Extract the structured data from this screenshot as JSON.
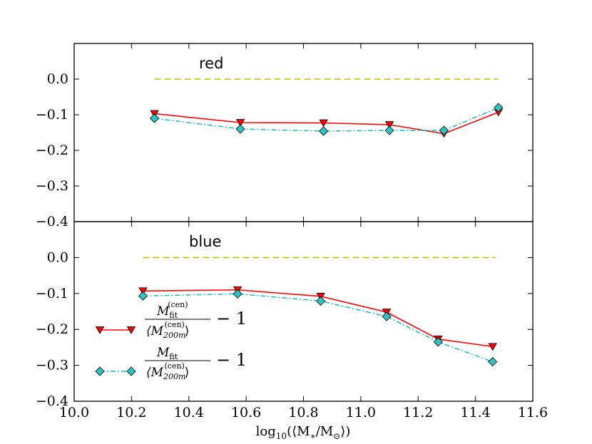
{
  "chart_data": {
    "type": "line",
    "xlabel": "log₁₀(⟨M∗/M⊙⟩)",
    "xlabel_parts": {
      "func": "log",
      "sub": "10",
      "body": "(⟨M",
      "star": "∗",
      "slash": "/M",
      "sun": "⊙",
      "close": "⟩)"
    },
    "xlim": [
      10.0,
      11.6
    ],
    "xticks": [
      "10.0",
      "10.2",
      "10.4",
      "10.6",
      "10.8",
      "11.0",
      "11.2",
      "11.4",
      "11.6"
    ],
    "colors": {
      "red_series": "#ff0000",
      "cyan_series": "#00bfbf",
      "baseline": "#bfbf00",
      "marker_red": "#ff0000",
      "marker_cyan": "#2ec4c4"
    },
    "panels": [
      {
        "label": "red",
        "ylim": [
          -0.4,
          0.1
        ],
        "yticks": [
          "0.0",
          "−0.1",
          "−0.2",
          "−0.3",
          "−0.4"
        ],
        "baseline": {
          "y": 0.0,
          "x": [
            10.28,
            11.48
          ]
        },
        "series": [
          {
            "name": "fit / cen - 1",
            "marker": "triangle-down",
            "x": [
              10.28,
              10.58,
              10.87,
              11.1,
              11.29,
              11.48
            ],
            "y": [
              -0.097,
              -0.122,
              -0.123,
              -0.128,
              -0.153,
              -0.093
            ]
          },
          {
            "name": "fit / 200m - 1",
            "marker": "diamond",
            "x": [
              10.28,
              10.58,
              10.87,
              11.1,
              11.29,
              11.48
            ],
            "y": [
              -0.11,
              -0.14,
              -0.146,
              -0.144,
              -0.144,
              -0.08
            ]
          }
        ]
      },
      {
        "label": "blue",
        "ylim": [
          -0.4,
          0.1
        ],
        "yticks": [
          "0.0",
          "−0.1",
          "−0.2",
          "−0.3",
          "−0.4"
        ],
        "baseline": {
          "y": 0.0,
          "x": [
            10.24,
            11.47
          ]
        },
        "series": [
          {
            "name": "fit / cen - 1",
            "marker": "triangle-down",
            "x": [
              10.24,
              10.57,
              10.86,
              11.09,
              11.27,
              11.46
            ],
            "y": [
              -0.093,
              -0.09,
              -0.108,
              -0.152,
              -0.227,
              -0.248
            ]
          },
          {
            "name": "fit / 200m - 1",
            "marker": "diamond",
            "x": [
              10.24,
              10.57,
              10.86,
              11.09,
              11.27,
              11.46
            ],
            "y": [
              -0.107,
              -0.101,
              -0.121,
              -0.164,
              -0.235,
              -0.29
            ]
          }
        ]
      }
    ],
    "legend": {
      "placement": "lower-left of bottom panel",
      "entries": [
        {
          "marker": "triangle-down",
          "numerator": "M",
          "num_sub": "fit",
          "num_sup": "(cen)",
          "denominator": "⟨M",
          "den_sub": "200m",
          "den_sup": "(cen)",
          "den_close": "⟩",
          "suffix": "− 1"
        },
        {
          "marker": "diamond",
          "numerator": "M",
          "num_sub": "fit",
          "denominator": "⟨M",
          "den_sub": "200m",
          "den_sup": "(cen)",
          "den_close": "⟩",
          "suffix": "− 1"
        }
      ]
    }
  }
}
